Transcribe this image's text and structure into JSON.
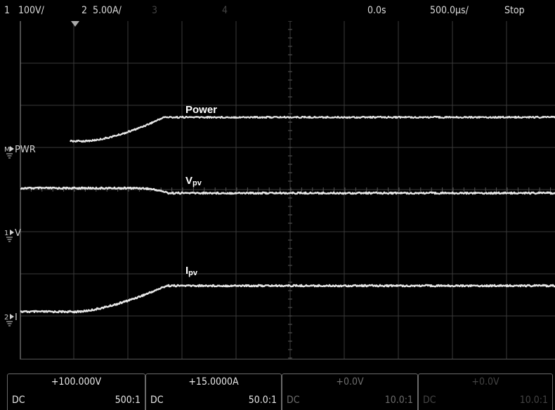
{
  "topbar": {
    "ch1_num": "1",
    "ch1_scale": "100V/",
    "ch2_num": "2",
    "ch2_scale": "5.00A/",
    "ch3_num": "3",
    "ch4_num": "4",
    "time_delay": "0.0s",
    "time_scale": "500.0μs/",
    "run_state": "Stop"
  },
  "screen": {
    "traces": [
      {
        "id": "power",
        "label": "Power",
        "marker_label": "PWR",
        "marker_num": "M"
      },
      {
        "id": "vpv",
        "label_main": "V",
        "label_sub": "pv",
        "marker_label": "V",
        "marker_num": "1"
      },
      {
        "id": "ipv",
        "label_main": "I",
        "label_sub": "pv",
        "marker_label": "I",
        "marker_num": "2"
      }
    ]
  },
  "channels": [
    {
      "scale": "+100.000V",
      "coupling": "DC",
      "probe": "500:1"
    },
    {
      "scale": "+15.0000A",
      "coupling": "DC",
      "probe": "50.0:1"
    },
    {
      "scale": "+0.0V",
      "coupling": "DC",
      "probe": "10.0:1"
    },
    {
      "scale": "+0.0V",
      "coupling": "DC",
      "probe": "10.0:1"
    }
  ],
  "colors": {
    "background": "#000000",
    "grid": "#3a3a3a",
    "trace": "#e6e6e6"
  }
}
